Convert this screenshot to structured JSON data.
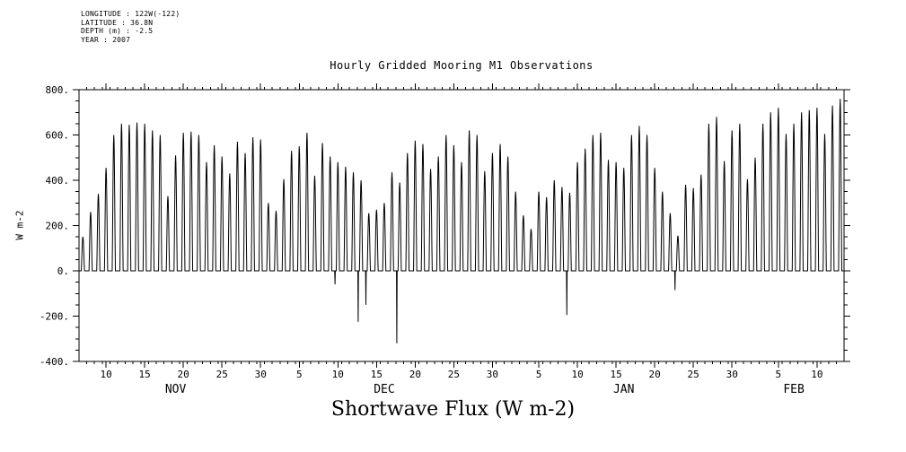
{
  "page": {
    "background": "#ffffff",
    "ink": "#000000"
  },
  "header": {
    "meta_lines": [
      "LONGITUDE : 122W(-122)",
      "LATITUDE : 36.8N",
      "DEPTH (m) : -2.5",
      "YEAR : 2007"
    ],
    "plot_title": "Hourly Gridded Mooring M1 Observations"
  },
  "y_axis_label": "W m-2",
  "bottom_title": "Shortwave Flux (W m-2)",
  "chart_data": {
    "type": "line",
    "title": "Hourly Gridded Mooring M1 Observations",
    "series_name": "Shortwave Flux",
    "units": "W m-2",
    "ylabel": "W m-2",
    "ylim": [
      -400,
      800
    ],
    "y_major_ticks": [
      800,
      600,
      400,
      200,
      0,
      -200,
      -400
    ],
    "y_tick_labels": [
      "800.",
      "600.",
      "400.",
      "200.",
      "0.",
      "-200.",
      "-400."
    ],
    "y_minor_step": 50,
    "x_start_date": "2007-11-07",
    "x_end_date": "2008-02-13",
    "x_total_days": 99,
    "x_minor_step_days": 1,
    "x_ticks": [
      {
        "day": 3,
        "label": "10"
      },
      {
        "day": 8,
        "label": "15"
      },
      {
        "day": 13,
        "label": "20"
      },
      {
        "day": 18,
        "label": "25"
      },
      {
        "day": 23,
        "label": "30"
      },
      {
        "day": 28,
        "label": "5"
      },
      {
        "day": 33,
        "label": "10"
      },
      {
        "day": 38,
        "label": "15"
      },
      {
        "day": 43,
        "label": "20"
      },
      {
        "day": 48,
        "label": "25"
      },
      {
        "day": 53,
        "label": "30"
      },
      {
        "day": 59,
        "label": "5"
      },
      {
        "day": 64,
        "label": "10"
      },
      {
        "day": 69,
        "label": "15"
      },
      {
        "day": 74,
        "label": "20"
      },
      {
        "day": 79,
        "label": "25"
      },
      {
        "day": 84,
        "label": "30"
      },
      {
        "day": 90,
        "label": "5"
      },
      {
        "day": 95,
        "label": "10"
      }
    ],
    "months": [
      {
        "label": "NOV",
        "label_day": 12
      },
      {
        "label": "DEC",
        "label_day": 39
      },
      {
        "label": "JAN",
        "label_day": 70
      },
      {
        "label": "FEB",
        "label_day": 92
      }
    ],
    "sunrise_hour": 7,
    "sunset_hour": 17,
    "daily_peaks": [
      150,
      260,
      340,
      455,
      600,
      650,
      645,
      655,
      650,
      620,
      600,
      330,
      510,
      610,
      615,
      600,
      480,
      555,
      505,
      430,
      570,
      520,
      590,
      580,
      300,
      265,
      405,
      530,
      550,
      610,
      420,
      565,
      505,
      480,
      460,
      435,
      400,
      255,
      270,
      300,
      435,
      390,
      520,
      575,
      560,
      450,
      505,
      600,
      555,
      480,
      620,
      600,
      440,
      520,
      560,
      505,
      350,
      245,
      185,
      350,
      325,
      400,
      370,
      345,
      480,
      540,
      600,
      610,
      490,
      480,
      455,
      600,
      640,
      600,
      455,
      350,
      255,
      155,
      380,
      365,
      425,
      650,
      680,
      485,
      620,
      650,
      405,
      500,
      650,
      700,
      720,
      605,
      650,
      700,
      710,
      720,
      605,
      730,
      760
    ],
    "negative_spikes": [
      {
        "day": 33,
        "value": -60
      },
      {
        "day": 36,
        "value": -225
      },
      {
        "day": 37,
        "value": -150
      },
      {
        "day": 41,
        "value": -320
      },
      {
        "day": 63,
        "value": -195
      },
      {
        "day": 77,
        "value": -85
      }
    ]
  }
}
